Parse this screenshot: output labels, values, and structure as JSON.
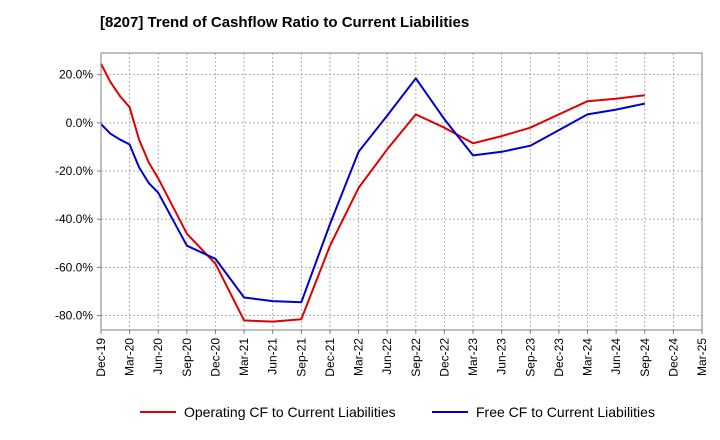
{
  "chart_data": {
    "type": "line",
    "title": "[8207]  Trend of Cashflow Ratio to Current Liabilities",
    "xlabel": "",
    "ylabel": "",
    "x_categories": [
      "Dec-19",
      "Mar-20",
      "Jun-20",
      "Sep-20",
      "Dec-20",
      "Mar-21",
      "Jun-21",
      "Sep-21",
      "Dec-21",
      "Mar-22",
      "Jun-22",
      "Sep-22",
      "Dec-22",
      "Mar-23",
      "Jun-23",
      "Sep-23",
      "Dec-23",
      "Mar-24",
      "Jun-24",
      "Sep-24",
      "Dec-24",
      "Mar-25"
    ],
    "y_ticks": [
      "20.0%",
      "0.0%",
      "-20.0%",
      "-40.0%",
      "-60.0%",
      "-80.0%"
    ],
    "y_tick_values": [
      20,
      0,
      -20,
      -40,
      -60,
      -80
    ],
    "ylim": [
      -86,
      29
    ],
    "grid": true,
    "legend_position": "bottom",
    "series": [
      {
        "name": "Operating CF to Current Liabilities",
        "color": "#e00000",
        "points": [
          {
            "x": 0.0,
            "y": 24.5
          },
          {
            "x": 0.33,
            "y": 17.0
          },
          {
            "x": 0.67,
            "y": 11.0
          },
          {
            "x": 1.0,
            "y": 6.5
          },
          {
            "x": 1.33,
            "y": -7.0
          },
          {
            "x": 1.67,
            "y": -16.5
          },
          {
            "x": 2.0,
            "y": -23.0
          },
          {
            "x": 3.0,
            "y": -46.0
          },
          {
            "x": 4.0,
            "y": -58.5
          },
          {
            "x": 5.0,
            "y": -82.0
          },
          {
            "x": 6.0,
            "y": -82.5
          },
          {
            "x": 7.0,
            "y": -81.5
          },
          {
            "x": 8.0,
            "y": -51.0
          },
          {
            "x": 9.0,
            "y": -27.0
          },
          {
            "x": 10.0,
            "y": -11.0
          },
          {
            "x": 11.0,
            "y": 3.5
          },
          {
            "x": 12.0,
            "y": -2.0
          },
          {
            "x": 13.0,
            "y": -8.5
          },
          {
            "x": 14.0,
            "y": -5.5
          },
          {
            "x": 15.0,
            "y": -2.0
          },
          {
            "x": 16.0,
            "y": 3.5
          },
          {
            "x": 17.0,
            "y": 9.0
          },
          {
            "x": 18.0,
            "y": 10.0
          },
          {
            "x": 19.0,
            "y": 11.5
          }
        ]
      },
      {
        "name": "Free CF to Current Liabilities",
        "color": "#0000d0",
        "points": [
          {
            "x": 0.0,
            "y": -0.5
          },
          {
            "x": 0.33,
            "y": -4.5
          },
          {
            "x": 0.67,
            "y": -7.0
          },
          {
            "x": 1.0,
            "y": -9.0
          },
          {
            "x": 1.33,
            "y": -18.5
          },
          {
            "x": 1.67,
            "y": -25.0
          },
          {
            "x": 2.0,
            "y": -29.0
          },
          {
            "x": 3.0,
            "y": -51.0
          },
          {
            "x": 4.0,
            "y": -56.5
          },
          {
            "x": 5.0,
            "y": -72.5
          },
          {
            "x": 6.0,
            "y": -74.0
          },
          {
            "x": 7.0,
            "y": -74.5
          },
          {
            "x": 8.0,
            "y": -42.0
          },
          {
            "x": 9.0,
            "y": -12.0
          },
          {
            "x": 10.0,
            "y": 3.0
          },
          {
            "x": 11.0,
            "y": 18.5
          },
          {
            "x": 12.0,
            "y": 1.5
          },
          {
            "x": 13.0,
            "y": -13.5
          },
          {
            "x": 14.0,
            "y": -12.0
          },
          {
            "x": 15.0,
            "y": -9.5
          },
          {
            "x": 16.0,
            "y": -3.0
          },
          {
            "x": 17.0,
            "y": 3.5
          },
          {
            "x": 18.0,
            "y": 5.5
          },
          {
            "x": 19.0,
            "y": 8.0
          }
        ]
      }
    ]
  }
}
